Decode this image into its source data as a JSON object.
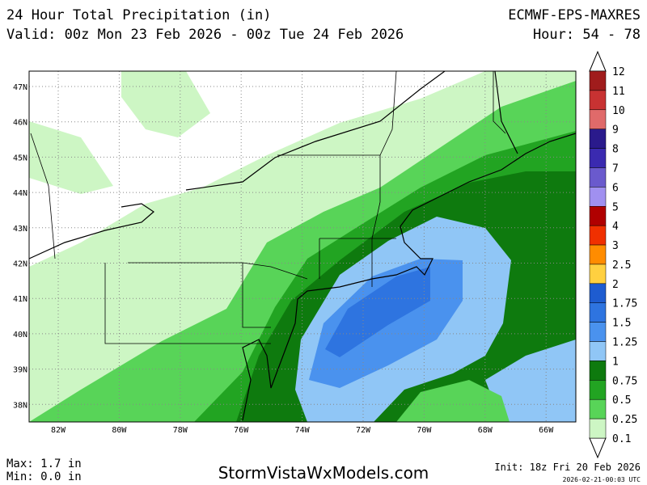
{
  "header": {
    "title": "24 Hour Total Precipitation (in)",
    "model": "ECMWF-EPS-MAXRES",
    "valid": "Valid: 00z Mon 23 Feb 2026 - 00z Tue 24 Feb 2026",
    "hour": "Hour: 54 - 78"
  },
  "map": {
    "lat_labels": [
      "47N",
      "46N",
      "45N",
      "44N",
      "43N",
      "42N",
      "41N",
      "40N",
      "39N",
      "38N"
    ],
    "lon_labels": [
      "82W",
      "80W",
      "78W",
      "76W",
      "74W",
      "72W",
      "70W",
      "68W",
      "66W"
    ]
  },
  "colorbar": {
    "labels": [
      "12",
      "11",
      "10",
      "9",
      "8",
      "7",
      "6",
      "5",
      "4",
      "3",
      "2.5",
      "2",
      "1.75",
      "1.5",
      "1.25",
      "1",
      "0.75",
      "0.5",
      "0.25",
      "0.1"
    ],
    "colors": [
      "#a01c1c",
      "#c83232",
      "#e06a6a",
      "#2a1a8c",
      "#3a2ab0",
      "#6a5acd",
      "#a090f0",
      "#b00000",
      "#f03000",
      "#ff8c00",
      "#ffd040",
      "#1e5cd0",
      "#2e74e0",
      "#4a92ee",
      "#90c6f6",
      "#0e7a0e",
      "#22a422",
      "#58d458",
      "#cdf6c4"
    ]
  },
  "footer": {
    "max": "Max: 1.7 in",
    "min": "Min: 0.0 in",
    "site": "StormVistaWxModels.com",
    "init": "Init: 18z Fri 20 Feb 2026",
    "timestamp": "2026-02-21-00:03 UTC"
  }
}
